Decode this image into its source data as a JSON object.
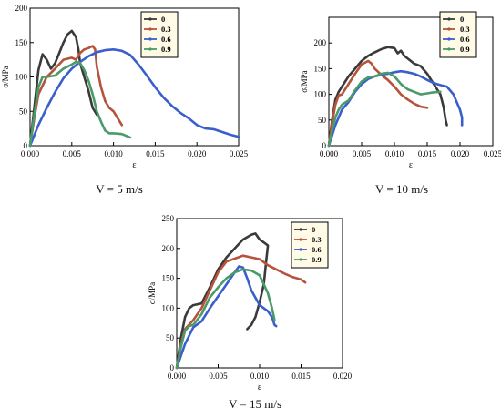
{
  "chart_data": [
    {
      "type": "line",
      "caption": "V = 5 m/s",
      "xlabel": "ε",
      "ylabel": "σ/MPa",
      "xlim": [
        0,
        0.025
      ],
      "ylim": [
        0,
        200
      ],
      "xticks": [
        "0.000",
        "0.005",
        "0.010",
        "0.015",
        "0.020",
        "0.025"
      ],
      "yticks": [
        "0",
        "50",
        "100",
        "150",
        "200"
      ],
      "legend_position": "top-right",
      "series": [
        {
          "name": "0",
          "color": "#3a3a3a",
          "points": [
            [
              0,
              0
            ],
            [
              0.0005,
              55
            ],
            [
              0.001,
              110
            ],
            [
              0.0015,
              133
            ],
            [
              0.002,
              125
            ],
            [
              0.0025,
              112
            ],
            [
              0.003,
              120
            ],
            [
              0.0035,
              135
            ],
            [
              0.004,
              150
            ],
            [
              0.0045,
              162
            ],
            [
              0.005,
              167
            ],
            [
              0.0055,
              158
            ],
            [
              0.0058,
              140
            ],
            [
              0.006,
              120
            ],
            [
              0.0065,
              100
            ],
            [
              0.007,
              80
            ],
            [
              0.0075,
              55
            ],
            [
              0.008,
              45
            ]
          ]
        },
        {
          "name": "0.3",
          "color": "#b5533c",
          "points": [
            [
              0,
              0
            ],
            [
              0.0005,
              40
            ],
            [
              0.001,
              75
            ],
            [
              0.002,
              100
            ],
            [
              0.003,
              112
            ],
            [
              0.004,
              125
            ],
            [
              0.005,
              128
            ],
            [
              0.0055,
              125
            ],
            [
              0.006,
              135
            ],
            [
              0.0065,
              140
            ],
            [
              0.007,
              142
            ],
            [
              0.0075,
              145
            ],
            [
              0.0078,
              140
            ],
            [
              0.008,
              115
            ],
            [
              0.0085,
              85
            ],
            [
              0.009,
              65
            ],
            [
              0.0095,
              55
            ],
            [
              0.01,
              50
            ],
            [
              0.0105,
              40
            ],
            [
              0.011,
              30
            ]
          ]
        },
        {
          "name": "0.6",
          "color": "#3a5fcd",
          "points": [
            [
              0,
              0
            ],
            [
              0.001,
              30
            ],
            [
              0.002,
              55
            ],
            [
              0.003,
              78
            ],
            [
              0.004,
              98
            ],
            [
              0.005,
              112
            ],
            [
              0.006,
              122
            ],
            [
              0.007,
              130
            ],
            [
              0.008,
              136
            ],
            [
              0.009,
              139
            ],
            [
              0.01,
              140
            ],
            [
              0.011,
              138
            ],
            [
              0.012,
              132
            ],
            [
              0.013,
              118
            ],
            [
              0.014,
              102
            ],
            [
              0.015,
              85
            ],
            [
              0.016,
              70
            ],
            [
              0.017,
              58
            ],
            [
              0.018,
              48
            ],
            [
              0.019,
              40
            ],
            [
              0.02,
              30
            ],
            [
              0.021,
              25
            ],
            [
              0.022,
              24
            ],
            [
              0.023,
              20
            ],
            [
              0.024,
              16
            ],
            [
              0.025,
              13
            ]
          ]
        },
        {
          "name": "0.9",
          "color": "#4a9a6a",
          "points": [
            [
              0,
              0
            ],
            [
              0.0005,
              45
            ],
            [
              0.001,
              85
            ],
            [
              0.0015,
              100
            ],
            [
              0.002,
              100
            ],
            [
              0.003,
              102
            ],
            [
              0.004,
              112
            ],
            [
              0.005,
              118
            ],
            [
              0.0055,
              122
            ],
            [
              0.006,
              120
            ],
            [
              0.0065,
              110
            ],
            [
              0.007,
              95
            ],
            [
              0.0075,
              75
            ],
            [
              0.008,
              50
            ],
            [
              0.0085,
              35
            ],
            [
              0.009,
              22
            ],
            [
              0.0095,
              18
            ],
            [
              0.01,
              18
            ],
            [
              0.011,
              17
            ],
            [
              0.012,
              12
            ]
          ]
        }
      ]
    },
    {
      "type": "line",
      "caption": "V = 10 m/s",
      "xlabel": "ε",
      "ylabel": "σ/MPa",
      "xlim": [
        0,
        0.025
      ],
      "ylim": [
        0,
        250
      ],
      "xticks": [
        "0.000",
        "0.005",
        "0.010",
        "0.015",
        "0.020",
        "0.025"
      ],
      "yticks": [
        "0",
        "50",
        "100",
        "150",
        "200"
      ],
      "legend_position": "top-right",
      "series": [
        {
          "name": "0",
          "color": "#3a3a3a",
          "points": [
            [
              0,
              0
            ],
            [
              0.0005,
              50
            ],
            [
              0.001,
              90
            ],
            [
              0.0015,
              105
            ],
            [
              0.002,
              115
            ],
            [
              0.003,
              135
            ],
            [
              0.004,
              150
            ],
            [
              0.005,
              165
            ],
            [
              0.006,
              175
            ],
            [
              0.007,
              182
            ],
            [
              0.008,
              188
            ],
            [
              0.009,
              192
            ],
            [
              0.01,
              190
            ],
            [
              0.0105,
              180
            ],
            [
              0.011,
              185
            ],
            [
              0.0115,
              175
            ],
            [
              0.012,
              170
            ],
            [
              0.013,
              160
            ],
            [
              0.014,
              155
            ],
            [
              0.015,
              140
            ],
            [
              0.016,
              120
            ],
            [
              0.017,
              100
            ],
            [
              0.0175,
              75
            ],
            [
              0.0178,
              50
            ],
            [
              0.018,
              40
            ]
          ]
        },
        {
          "name": "0.3",
          "color": "#b5533c",
          "points": [
            [
              0,
              0
            ],
            [
              0.0005,
              45
            ],
            [
              0.001,
              80
            ],
            [
              0.0015,
              98
            ],
            [
              0.002,
              100
            ],
            [
              0.003,
              120
            ],
            [
              0.004,
              140
            ],
            [
              0.005,
              158
            ],
            [
              0.006,
              165
            ],
            [
              0.0065,
              160
            ],
            [
              0.007,
              150
            ],
            [
              0.008,
              138
            ],
            [
              0.009,
              128
            ],
            [
              0.01,
              115
            ],
            [
              0.011,
              100
            ],
            [
              0.012,
              90
            ],
            [
              0.013,
              82
            ],
            [
              0.014,
              76
            ],
            [
              0.015,
              74
            ]
          ]
        },
        {
          "name": "0.6",
          "color": "#3a5fcd",
          "points": [
            [
              0,
              0
            ],
            [
              0.001,
              40
            ],
            [
              0.002,
              70
            ],
            [
              0.003,
              85
            ],
            [
              0.004,
              105
            ],
            [
              0.005,
              120
            ],
            [
              0.006,
              130
            ],
            [
              0.007,
              135
            ],
            [
              0.008,
              138
            ],
            [
              0.009,
              140
            ],
            [
              0.01,
              143
            ],
            [
              0.011,
              145
            ],
            [
              0.012,
              143
            ],
            [
              0.013,
              140
            ],
            [
              0.014,
              135
            ],
            [
              0.015,
              128
            ],
            [
              0.016,
              122
            ],
            [
              0.017,
              118
            ],
            [
              0.018,
              115
            ],
            [
              0.019,
              100
            ],
            [
              0.0195,
              85
            ],
            [
              0.02,
              70
            ],
            [
              0.0203,
              55
            ],
            [
              0.0203,
              40
            ]
          ]
        },
        {
          "name": "0.9",
          "color": "#4a9a6a",
          "points": [
            [
              0,
              0
            ],
            [
              0.0005,
              30
            ],
            [
              0.001,
              55
            ],
            [
              0.0015,
              70
            ],
            [
              0.002,
              80
            ],
            [
              0.003,
              88
            ],
            [
              0.004,
              108
            ],
            [
              0.005,
              125
            ],
            [
              0.006,
              133
            ],
            [
              0.007,
              135
            ],
            [
              0.008,
              140
            ],
            [
              0.009,
              142
            ],
            [
              0.01,
              135
            ],
            [
              0.011,
              120
            ],
            [
              0.012,
              110
            ],
            [
              0.013,
              105
            ],
            [
              0.014,
              100
            ],
            [
              0.015,
              102
            ],
            [
              0.016,
              104
            ],
            [
              0.017,
              105
            ]
          ]
        }
      ]
    },
    {
      "type": "line",
      "caption": "V = 15 m/s",
      "xlabel": "ε",
      "ylabel": "σ/MPa",
      "xlim": [
        0,
        0.02
      ],
      "ylim": [
        0,
        250
      ],
      "xticks": [
        "0.000",
        "0.005",
        "0.010",
        "0.015",
        "0.020"
      ],
      "yticks": [
        "0",
        "50",
        "100",
        "150",
        "200",
        "250"
      ],
      "legend_position": "top-right",
      "series": [
        {
          "name": "0",
          "color": "#3a3a3a",
          "points": [
            [
              0,
              0
            ],
            [
              0.0005,
              50
            ],
            [
              0.001,
              85
            ],
            [
              0.0015,
              100
            ],
            [
              0.002,
              105
            ],
            [
              0.003,
              108
            ],
            [
              0.004,
              135
            ],
            [
              0.005,
              165
            ],
            [
              0.006,
              185
            ],
            [
              0.007,
              200
            ],
            [
              0.008,
              215
            ],
            [
              0.009,
              223
            ],
            [
              0.0095,
              225
            ],
            [
              0.01,
              215
            ],
            [
              0.0105,
              210
            ],
            [
              0.011,
              205
            ],
            [
              0.0108,
              180
            ],
            [
              0.0105,
              140
            ],
            [
              0.01,
              110
            ],
            [
              0.0095,
              85
            ],
            [
              0.009,
              72
            ],
            [
              0.0085,
              65
            ]
          ]
        },
        {
          "name": "0.3",
          "color": "#b5533c",
          "points": [
            [
              0,
              0
            ],
            [
              0.0005,
              40
            ],
            [
              0.001,
              65
            ],
            [
              0.002,
              80
            ],
            [
              0.003,
              100
            ],
            [
              0.004,
              130
            ],
            [
              0.005,
              160
            ],
            [
              0.006,
              178
            ],
            [
              0.007,
              183
            ],
            [
              0.008,
              188
            ],
            [
              0.009,
              185
            ],
            [
              0.01,
              182
            ],
            [
              0.011,
              172
            ],
            [
              0.012,
              165
            ],
            [
              0.013,
              158
            ],
            [
              0.014,
              152
            ],
            [
              0.015,
              148
            ],
            [
              0.0155,
              143
            ]
          ]
        },
        {
          "name": "0.6",
          "color": "#3a5fcd",
          "points": [
            [
              0,
              0
            ],
            [
              0.001,
              40
            ],
            [
              0.002,
              68
            ],
            [
              0.003,
              78
            ],
            [
              0.004,
              100
            ],
            [
              0.005,
              120
            ],
            [
              0.006,
              140
            ],
            [
              0.007,
              160
            ],
            [
              0.0075,
              170
            ],
            [
              0.008,
              168
            ],
            [
              0.0085,
              150
            ],
            [
              0.009,
              130
            ],
            [
              0.01,
              105
            ],
            [
              0.011,
              95
            ],
            [
              0.0115,
              85
            ],
            [
              0.0118,
              72
            ],
            [
              0.012,
              70
            ]
          ]
        },
        {
          "name": "0.9",
          "color": "#4a9a6a",
          "points": [
            [
              0,
              0
            ],
            [
              0.0005,
              35
            ],
            [
              0.001,
              62
            ],
            [
              0.0015,
              70
            ],
            [
              0.002,
              72
            ],
            [
              0.003,
              90
            ],
            [
              0.004,
              118
            ],
            [
              0.005,
              135
            ],
            [
              0.006,
              150
            ],
            [
              0.007,
              160
            ],
            [
              0.008,
              165
            ],
            [
              0.009,
              163
            ],
            [
              0.01,
              155
            ],
            [
              0.0105,
              140
            ],
            [
              0.011,
              125
            ],
            [
              0.0115,
              100
            ],
            [
              0.0118,
              80
            ]
          ]
        }
      ]
    }
  ]
}
